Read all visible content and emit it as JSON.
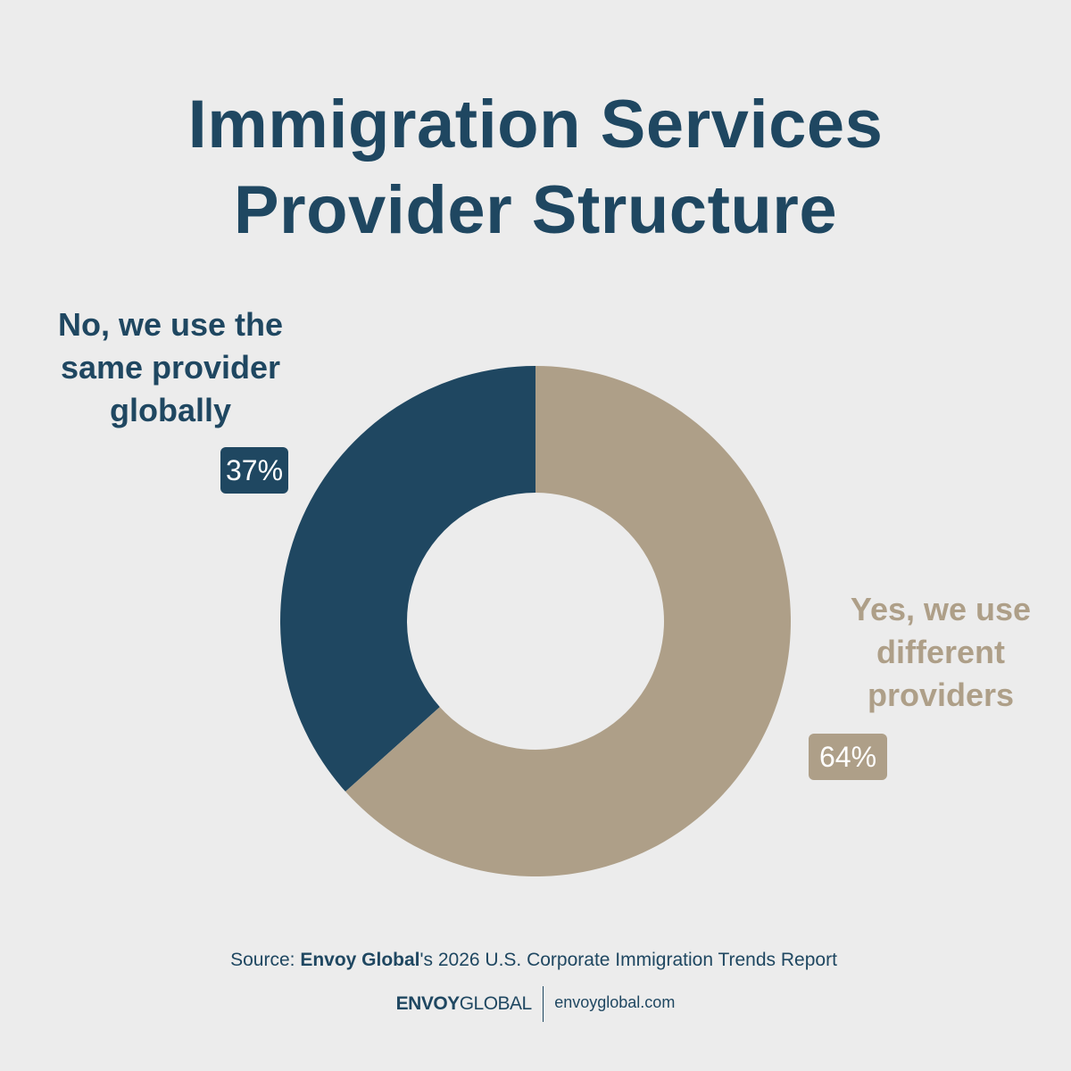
{
  "chart_data": {
    "type": "pie",
    "title": "Immigration Services Provider Structure",
    "title_lines": [
      "Immigration Services",
      "Provider Structure"
    ],
    "slices": [
      {
        "label": "No, we use the same provider globally",
        "label_lines": [
          "No, we use the",
          "same provider",
          "globally"
        ],
        "value": 37,
        "value_label": "37%",
        "color": "#1f4761"
      },
      {
        "label": "Yes, we use different providers",
        "label_lines": [
          "Yes, we use",
          "different",
          "providers"
        ],
        "value": 64,
        "value_label": "64%",
        "color": "#ae9f88"
      }
    ],
    "donut": true
  },
  "source": {
    "prefix": "Source: ",
    "brand": "Envoy Global",
    "suffix": "'s 2026 U.S. Corporate Immigration Trends Report"
  },
  "footer": {
    "logo_envoy": "ENVOY",
    "logo_global": "GLOBAL",
    "website": "envoyglobal.com"
  },
  "colors": {
    "background": "#ececec",
    "navy": "#1f4761",
    "tan": "#ae9f88"
  }
}
